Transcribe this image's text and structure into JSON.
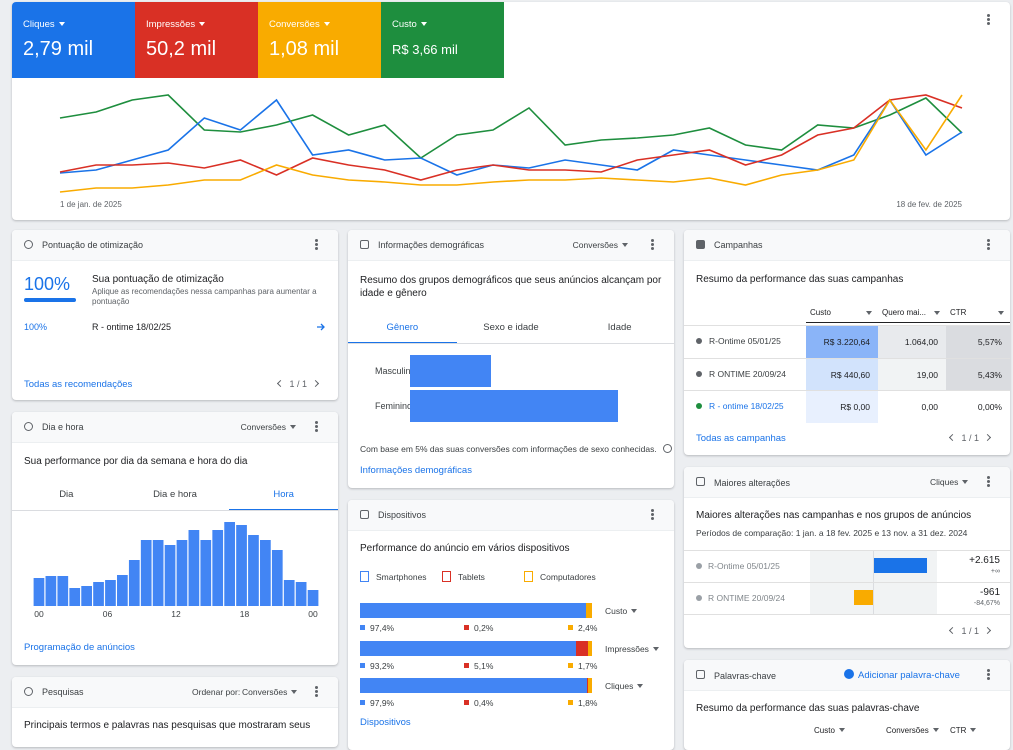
{
  "summary": {
    "metrics": [
      {
        "label": "Cliques",
        "value": "2,79 mil",
        "color": "#1a73e8",
        "trend": [
          27,
          30,
          40,
          50,
          82,
          70,
          100,
          45,
          50,
          40,
          42,
          25,
          35,
          32,
          40,
          35,
          30,
          50,
          45,
          40,
          35,
          30,
          45,
          100,
          45,
          68
        ]
      },
      {
        "label": "Impressões",
        "value": "50,2 mil",
        "color": "#d93025",
        "trend": [
          28,
          35,
          35,
          37,
          32,
          40,
          25,
          42,
          35,
          30,
          20,
          30,
          35,
          30,
          30,
          28,
          40,
          45,
          50,
          35,
          45,
          65,
          72,
          100,
          105,
          92
        ]
      },
      {
        "label": "Conversões",
        "value": "1,08 mil",
        "color": "#f9ab00",
        "trend": [
          8,
          12,
          12,
          15,
          20,
          20,
          35,
          25,
          20,
          18,
          15,
          15,
          18,
          20,
          20,
          22,
          20,
          18,
          22,
          15,
          25,
          30,
          40,
          100,
          50,
          105
        ]
      },
      {
        "label": "Custo",
        "value": "R$ 3,66 mil",
        "color": "#1e8e3e",
        "trend": [
          82,
          88,
          100,
          105,
          70,
          68,
          75,
          85,
          65,
          75,
          42,
          65,
          70,
          92,
          55,
          60,
          62,
          65,
          72,
          55,
          50,
          75,
          72,
          85,
          102,
          67
        ]
      }
    ],
    "start_date": "1 de jan. de 2025",
    "end_date": "18 de fev. de 2025"
  },
  "optimization": {
    "title": "Pontuação de otimização",
    "score": "100%",
    "heading": "Sua pontuação de otimização",
    "description": "Aplique as recomendações nessa campanhas para aumentar a pontuação",
    "item_score": "100%",
    "item_campaign": "R - ontime 18/02/25",
    "link": "Todas as recomendações",
    "pagination": "1 / 1"
  },
  "schedule": {
    "title": "Dia e hora",
    "metric": "Conversões",
    "heading": "Sua performance por dia da semana e hora do dia",
    "tabs": [
      "Dia",
      "Dia e hora",
      "Hora"
    ],
    "active_tab": 2,
    "chart": {
      "type": "bar",
      "values": [
        28,
        30,
        30,
        18,
        20,
        24,
        26,
        31,
        46,
        66,
        66,
        61,
        66,
        76,
        66,
        76,
        84,
        81,
        71,
        66,
        56,
        26,
        24,
        16
      ],
      "x_labels": [
        "00",
        "06",
        "12",
        "18",
        "00"
      ],
      "color": "#4285f4"
    },
    "link": "Programação de anúncios"
  },
  "searches": {
    "title": "Pesquisas",
    "sort_label": "Ordenar por:",
    "sort_value": "Conversões",
    "heading": "Principais termos e palavras nas pesquisas que mostraram seus"
  },
  "demographics": {
    "title": "Informações demográficas",
    "metric": "Conversões",
    "heading": "Resumo dos grupos demográficos que seus anúncios alcançam por idade e gênero",
    "tabs": [
      "Gênero",
      "Sexo e idade",
      "Idade"
    ],
    "active_tab": 0,
    "chart": {
      "type": "bar",
      "orientation": "horizontal",
      "categories": [
        "Masculino",
        "Feminino"
      ],
      "values": [
        28,
        72
      ],
      "color": "#4285f4"
    },
    "note": "Com base em 5% das suas conversões com informações de sexo conhecidas.",
    "link": "Informações demográficas"
  },
  "devices": {
    "title": "Dispositivos",
    "heading": "Performance do anúncio em vários dispositivos",
    "chart": {
      "type": "stacked-bar",
      "categories": [
        "Custo",
        "Impressões",
        "Cliques"
      ],
      "series": [
        {
          "name": "Smartphones",
          "color": "#4285f4",
          "values": [
            97.4,
            93.2,
            97.9
          ],
          "value_labels": [
            "97,4%",
            "93,2%",
            "97,9%"
          ]
        },
        {
          "name": "Tablets",
          "color": "#d93025",
          "values": [
            0.2,
            5.1,
            0.4
          ],
          "value_labels": [
            "0,2%",
            "5,1%",
            "0,4%"
          ]
        },
        {
          "name": "Computadores",
          "color": "#f9ab00",
          "values": [
            2.4,
            1.7,
            1.8
          ],
          "value_labels": [
            "2,4%",
            "1,7%",
            "1,8%"
          ]
        }
      ]
    },
    "link": "Dispositivos"
  },
  "campaigns": {
    "title": "Campanhas",
    "heading": "Resumo da performance das suas campanhas",
    "columns": [
      "Custo",
      "Quero mai...",
      "CTR"
    ],
    "rows": [
      {
        "name": "R-Ontime 05/01/25",
        "cells": [
          "R$ 3.220,64",
          "1.064,00",
          "5,57%"
        ]
      },
      {
        "name": "R ONTIME 20/09/24",
        "cells": [
          "R$ 440,60",
          "19,00",
          "5,43%"
        ]
      },
      {
        "name": "R - ontime 18/02/25",
        "cells": [
          "R$ 0,00",
          "0,00",
          "0,00%"
        ]
      }
    ],
    "link": "Todas as campanhas",
    "pagination": "1 / 1"
  },
  "changes": {
    "title": "Maiores alterações",
    "metric": "Cliques",
    "heading": "Maiores alterações nas campanhas e nos grupos de anúncios",
    "period": "Períodos de comparação: 1 jan. a 18 fev. 2025 e 13 nov. a 31 dez. 2024",
    "chart": {
      "type": "bar",
      "orientation": "diverging",
      "categories": [
        "R-Ontime 05/01/25",
        "R ONTIME 20/09/24"
      ],
      "values": [
        2615,
        -961
      ],
      "value_labels": [
        "+2.615",
        "-961"
      ],
      "change_labels": [
        "+∞",
        "-84,67%"
      ],
      "colors": [
        "#1a73e8",
        "#f9ab00"
      ]
    },
    "pagination": "1 / 1"
  },
  "keywords": {
    "title": "Palavras-chave",
    "action": "Adicionar palavra-chave",
    "heading": "Resumo da performance das suas palavras-chave",
    "columns": [
      "Custo",
      "Conversões",
      "CTR"
    ]
  }
}
